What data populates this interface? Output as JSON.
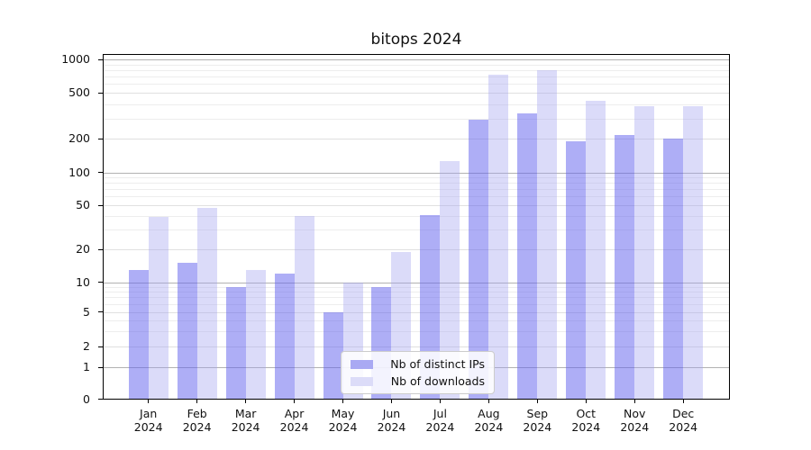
{
  "title": "bitops 2024",
  "chart_data": {
    "type": "bar",
    "title": "bitops 2024",
    "categories": [
      "Jan 2024",
      "Feb 2024",
      "Mar 2024",
      "Apr 2024",
      "May 2024",
      "Jun 2024",
      "Jul 2024",
      "Aug 2024",
      "Sep 2024",
      "Oct 2024",
      "Nov 2024",
      "Dec 2024"
    ],
    "series": [
      {
        "name": "Nb of distinct IPs",
        "color": "#a9a9f3",
        "bar_color": "rgba(100,100,238,0.52)",
        "values": [
          13,
          15,
          9,
          12,
          5,
          9,
          41,
          290,
          330,
          190,
          215,
          200
        ]
      },
      {
        "name": "Nb of downloads",
        "color": "#dcdcf8",
        "bar_color": "rgba(160,160,240,0.38)",
        "values": [
          39,
          47,
          13,
          40,
          10,
          19,
          125,
          730,
          800,
          430,
          385,
          385
        ]
      }
    ],
    "yticks": [
      0,
      1,
      2,
      5,
      10,
      20,
      50,
      100,
      200,
      500,
      1000
    ],
    "yscale": "symlog",
    "ylim": [
      0,
      1000
    ],
    "xlabel": "",
    "ylabel": "",
    "legend_position": "lower center",
    "grid": true
  }
}
